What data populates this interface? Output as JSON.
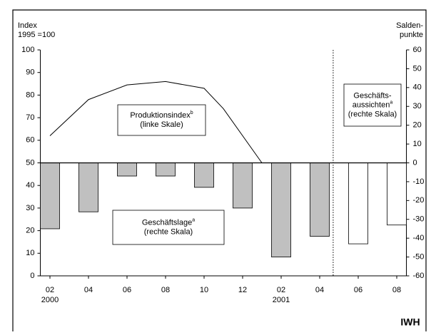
{
  "chart_data": {
    "type": "combo",
    "y_title": [
      "Index",
      "1995 =100"
    ],
    "y2_title": [
      "Salden-",
      "punkte"
    ],
    "source": "IWH",
    "xlim": [
      -0.5,
      18.5
    ],
    "xticks": [
      {
        "value": 0,
        "label": "02"
      },
      {
        "value": 2,
        "label": "04"
      },
      {
        "value": 4,
        "label": "06"
      },
      {
        "value": 6,
        "label": "08"
      },
      {
        "value": 8,
        "label": "10"
      },
      {
        "value": 10,
        "label": "12"
      },
      {
        "value": 12,
        "label": "02"
      },
      {
        "value": 14,
        "label": "04"
      },
      {
        "value": 16,
        "label": "06"
      },
      {
        "value": 18,
        "label": "08"
      }
    ],
    "year_labels": [
      {
        "value": 0,
        "label": "2000"
      },
      {
        "value": 12,
        "label": "2001"
      }
    ],
    "ylim": [
      0,
      100
    ],
    "yticks": [
      0,
      10,
      20,
      30,
      40,
      50,
      60,
      70,
      80,
      90,
      100
    ],
    "y2lim": [
      -60,
      60
    ],
    "y2ticks": [
      -60,
      -50,
      -40,
      -30,
      -20,
      -10,
      0,
      10,
      20,
      30,
      40,
      50,
      60
    ],
    "series": [
      {
        "name": [
          "Produktionsindex"
        ],
        "footnote": "b",
        "scale_note": "(linke Skale)",
        "type": "line",
        "color": "#000000",
        "x": [
          0,
          2,
          4,
          6,
          8,
          9,
          11
        ],
        "values": [
          62,
          78,
          84.5,
          86,
          83,
          74,
          50
        ]
      },
      {
        "name": [
          "Geschäftslage"
        ],
        "footnote": "a",
        "scale_note": "(rechte Skala)",
        "type": "bar",
        "axis": "y2",
        "color": "#c0c0c0",
        "x": [
          0,
          2,
          4,
          6,
          8,
          10,
          12,
          14
        ],
        "values": [
          -35,
          -26,
          -7,
          -7,
          -13,
          -24,
          -50,
          -39
        ]
      },
      {
        "name": [
          "Geschäfts-",
          "aussichten"
        ],
        "footnote": "a",
        "scale_note": "(rechte Skala)",
        "type": "bar",
        "axis": "y2",
        "color": "#ffffff",
        "x": [
          16,
          18
        ],
        "values": [
          -43,
          -33
        ]
      }
    ]
  }
}
